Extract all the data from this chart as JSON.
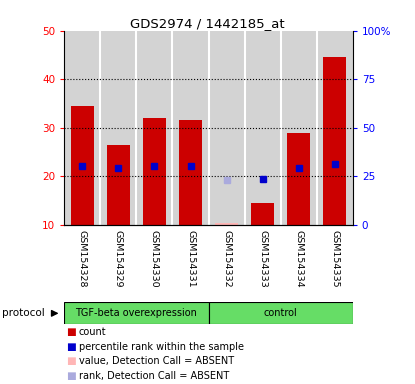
{
  "title": "GDS2974 / 1442185_at",
  "samples": [
    "GSM154328",
    "GSM154329",
    "GSM154330",
    "GSM154331",
    "GSM154332",
    "GSM154333",
    "GSM154334",
    "GSM154335"
  ],
  "counts": [
    34.5,
    26.5,
    32.0,
    31.5,
    null,
    14.5,
    29.0,
    44.5
  ],
  "counts_absent": [
    null,
    null,
    null,
    null,
    10.3,
    null,
    null,
    null
  ],
  "percentile_ranks": [
    30.0,
    29.0,
    30.0,
    30.0,
    null,
    23.5,
    29.0,
    31.5
  ],
  "percentile_ranks_absent": [
    null,
    null,
    null,
    null,
    23.0,
    null,
    null,
    null
  ],
  "bar_color": "#CC0000",
  "bar_absent_color": "#FFB6B6",
  "rank_color": "#0000CC",
  "rank_absent_color": "#AAAADD",
  "ylim_left": [
    10,
    50
  ],
  "ylim_right": [
    0,
    100
  ],
  "yticks_left": [
    10,
    20,
    30,
    40,
    50
  ],
  "yticks_right": [
    0,
    25,
    50,
    75,
    100
  ],
  "ytick_labels_right": [
    "0",
    "25",
    "50",
    "75",
    "100%"
  ],
  "legend_items": [
    {
      "label": "count",
      "color": "#CC0000"
    },
    {
      "label": "percentile rank within the sample",
      "color": "#0000CC"
    },
    {
      "label": "value, Detection Call = ABSENT",
      "color": "#FFB6B6"
    },
    {
      "label": "rank, Detection Call = ABSENT",
      "color": "#AAAADD"
    }
  ],
  "col_bg_color": "#D3D3D3",
  "plot_bg_color": "#FFFFFF",
  "green_color": "#66DD66"
}
